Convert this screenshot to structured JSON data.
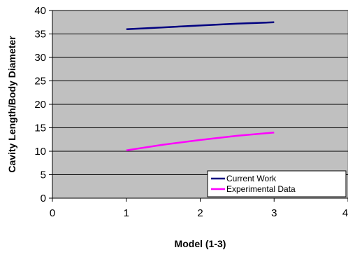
{
  "chart_data": {
    "type": "line",
    "title": "",
    "xlabel": "Model (1-3)",
    "ylabel": "Cavity Length/Body Diameter",
    "xlim": [
      0,
      4
    ],
    "ylim": [
      0,
      40
    ],
    "xticks": [
      0,
      1,
      2,
      3,
      4
    ],
    "yticks": [
      0,
      5,
      10,
      15,
      20,
      25,
      30,
      35,
      40
    ],
    "grid": "horizontal",
    "legend_position": "bottom-right",
    "plot_background": "#c0c0c0",
    "series": [
      {
        "name": "Current Work",
        "color": "#000080",
        "x": [
          1,
          1.5,
          2,
          2.5,
          3
        ],
        "y": [
          36,
          36.4,
          36.8,
          37.2,
          37.5
        ]
      },
      {
        "name": "Experimental Data",
        "color": "#ff00ff",
        "x": [
          1,
          1.5,
          2,
          2.5,
          3
        ],
        "y": [
          10.2,
          11.4,
          12.4,
          13.3,
          14
        ]
      }
    ]
  }
}
